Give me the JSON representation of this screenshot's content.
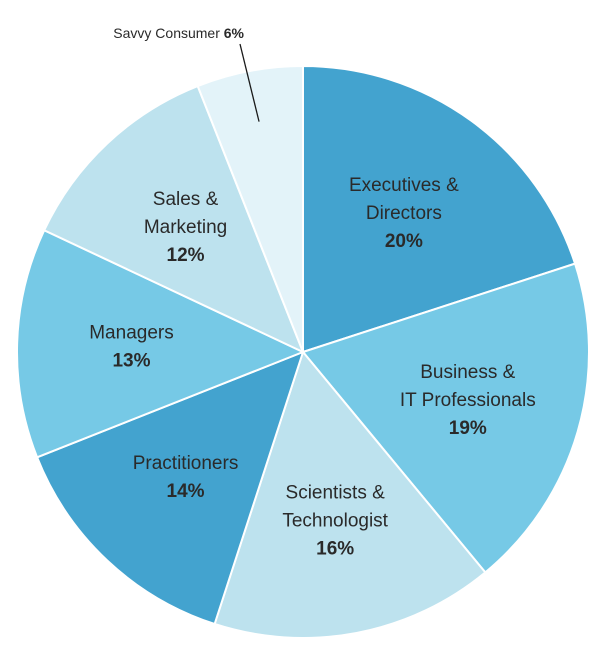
{
  "chart_data": {
    "type": "pie",
    "title": "",
    "slices": [
      {
        "label_lines": [
          "Executives &",
          "Directors"
        ],
        "value": 20,
        "value_label": "20%",
        "color": "#43a3cf"
      },
      {
        "label_lines": [
          "Business &",
          "IT Professionals"
        ],
        "value": 19,
        "value_label": "19%",
        "color": "#76c9e6"
      },
      {
        "label_lines": [
          "Scientists &",
          "Technologist"
        ],
        "value": 16,
        "value_label": "16%",
        "color": "#bde2ee"
      },
      {
        "label_lines": [
          "Practitioners"
        ],
        "value": 14,
        "value_label": "14%",
        "color": "#43a3cf"
      },
      {
        "label_lines": [
          "Managers"
        ],
        "value": 13,
        "value_label": "13%",
        "color": "#76c9e6"
      },
      {
        "label_lines": [
          "Sales &",
          "Marketing"
        ],
        "value": 12,
        "value_label": "12%",
        "color": "#bde2ee"
      },
      {
        "label_lines": [
          "Savvy Consumer"
        ],
        "value": 6,
        "value_label": "6%",
        "color": "#e3f3f9"
      }
    ]
  }
}
